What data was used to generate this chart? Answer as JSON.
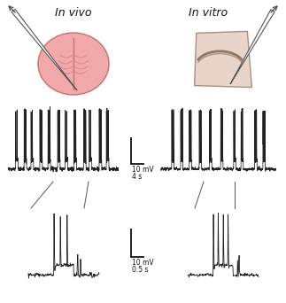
{
  "invivo_label": "In vivo",
  "invitro_label": "In vitro",
  "brain_color": "#f0a8a8",
  "brain_edge_color": "#c87070",
  "brain_gyri_color": "#e08080",
  "slice_outer_color": "#e8d4c8",
  "slice_edge_color": "#a89080",
  "slice_sulcus_color": "#907868",
  "electrode_color": "#555555",
  "trace_color": "#222222",
  "bg_color": "#ffffff",
  "scale1_text1": "10 mV",
  "scale1_text2": "4 s",
  "scale2_text1": "10 mV",
  "scale2_text2": "0.5 s"
}
